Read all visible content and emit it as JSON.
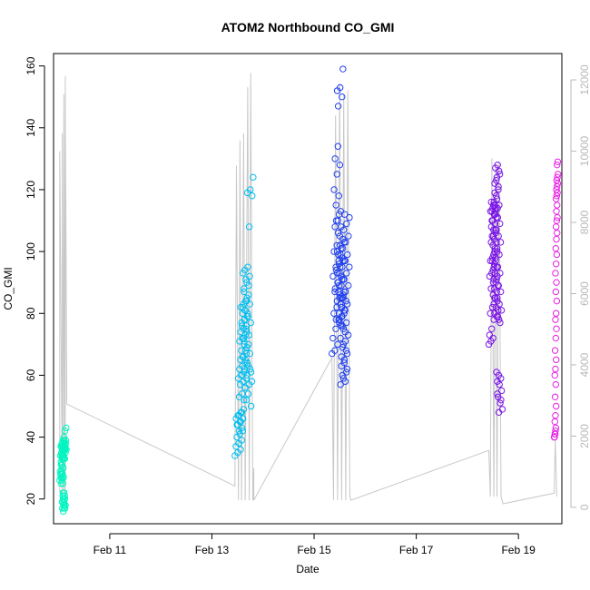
{
  "chart_data": {
    "type": "scatter",
    "title": "ATOM2 Northbound CO_GMI",
    "xlabel": "Date",
    "ylabel": "CO_GMI",
    "x_ticks": [
      "Feb 11",
      "Feb 13",
      "Feb 15",
      "Feb 17",
      "Feb 19"
    ],
    "x_tick_days": [
      11,
      13,
      15,
      17,
      19
    ],
    "xlim_days": [
      9.9,
      19.85
    ],
    "ylim": [
      12,
      164
    ],
    "y_ticks": [
      20,
      40,
      60,
      80,
      100,
      120,
      140,
      160
    ],
    "y2_ticks": [
      0,
      2000,
      4000,
      6000,
      8000,
      10000,
      12000
    ],
    "y2_lim": [
      -460,
      12740
    ],
    "grid": false,
    "legend": "none",
    "colors": {
      "altitude_line": "#c8c8c8",
      "right_axis": "#b8b8b8",
      "clusters": [
        "#00f5c0",
        "#00bef0",
        "#1f3ff0",
        "#7a14e8",
        "#e81ee6"
      ]
    },
    "series": [
      {
        "clusters": [
          {
            "x_range": [
              10.02,
              10.16
            ],
            "y": [
              26,
              27,
              28,
              29,
              25,
              27,
              28,
              29,
              30,
              31,
              33,
              34,
              35,
              36,
              37,
              38,
              39,
              37,
              36,
              35,
              34,
              33,
              32,
              31,
              30,
              29,
              28,
              27,
              26,
              25,
              38,
              37,
              36,
              35,
              34,
              33,
              19,
              20,
              18,
              17,
              19,
              21,
              22,
              18,
              17,
              19,
              20,
              21,
              18,
              17,
              16,
              17,
              18,
              19,
              20,
              21,
              22,
              36,
              37,
              38,
              39,
              40,
              42,
              43,
              36,
              35,
              34,
              33,
              38,
              39,
              37,
              36
            ]
          },
          {
            "x_range": [
              13.45,
              13.82
            ],
            "y": [
              34,
              35,
              36,
              37,
              38,
              39,
              40,
              41,
              42,
              44,
              45,
              46,
              47,
              48,
              44,
              45,
              46,
              47,
              48,
              49,
              42,
              43,
              44,
              45,
              46,
              47,
              48,
              52,
              53,
              54,
              56,
              57,
              58,
              59,
              60,
              61,
              62,
              63,
              64,
              65,
              66,
              67,
              68,
              70,
              71,
              72,
              73,
              74,
              75,
              76,
              77,
              78,
              79,
              80,
              81,
              82,
              83,
              84,
              60,
              62,
              64,
              66,
              68,
              70,
              72,
              74,
              76,
              78,
              80,
              82,
              84,
              86,
              88,
              90,
              92,
              94,
              95,
              93,
              91,
              89,
              87,
              85,
              83,
              81,
              79,
              77,
              75,
              73,
              71,
              69,
              67,
              65,
              63,
              61,
              59,
              57,
              58,
              60,
              62,
              56,
              54,
              50,
              52,
              108,
              118,
              119,
              120,
              124
            ]
          },
          {
            "x_range": [
              15.35,
              15.72
            ],
            "y": [
              67,
              68,
              70,
              72,
              75,
              78,
              80,
              82,
              85,
              87,
              90,
              92,
              95,
              97,
              100,
              102,
              105,
              108,
              110,
              113,
              115,
              118,
              120,
              125,
              128,
              130,
              134,
              76,
              78,
              80,
              82,
              84,
              86,
              88,
              90,
              92,
              94,
              96,
              98,
              100,
              102,
              104,
              106,
              108,
              110,
              112,
              150,
              152,
              153,
              159,
              147,
              85,
              87,
              89,
              91,
              93,
              95,
              97,
              99,
              101,
              103,
              77,
              79,
              81,
              83,
              85,
              87,
              89,
              91,
              93,
              95,
              97,
              99,
              86,
              84,
              82,
              80,
              78,
              76,
              74,
              72,
              70,
              68,
              66,
              64,
              62,
              60,
              58,
              57,
              59,
              61,
              63,
              65,
              67,
              69,
              71,
              73,
              75,
              77,
              79,
              81,
              83,
              85,
              87,
              89,
              91,
              93,
              95,
              97,
              99,
              101,
              103,
              105,
              107,
              109,
              111,
              112
            ]
          },
          {
            "x_range": [
              18.42,
              18.7
            ],
            "y": [
              70,
              71,
              72,
              73,
              75,
              78,
              80,
              82,
              85,
              88,
              90,
              92,
              93,
              95,
              97,
              98,
              100,
              103,
              105,
              107,
              110,
              112,
              113,
              114,
              115,
              116,
              115,
              114,
              113,
              112,
              111,
              110,
              109,
              108,
              107,
              106,
              105,
              104,
              103,
              102,
              101,
              100,
              99,
              98,
              97,
              96,
              95,
              94,
              93,
              92,
              91,
              90,
              89,
              88,
              87,
              86,
              85,
              84,
              83,
              82,
              81,
              80,
              79,
              78,
              112,
              114,
              116,
              118,
              120,
              122,
              124,
              126,
              127,
              128,
              125,
              123,
              121,
              119,
              117,
              115,
              113,
              111,
              109,
              107,
              105,
              103,
              101,
              99,
              97,
              95,
              93,
              91,
              89,
              87,
              85,
              83,
              81,
              79,
              77,
              61,
              60,
              59,
              58,
              57,
              55,
              53,
              51,
              49,
              48,
              52,
              54
            ]
          },
          {
            "x_range": [
              19.7,
              19.78
            ],
            "y": [
              40,
              41,
              42,
              40,
              41,
              43,
              45,
              47,
              50,
              53,
              57,
              60,
              62,
              65,
              68,
              72,
              75,
              78,
              80,
              84,
              87,
              90,
              93,
              96,
              99,
              101,
              104,
              106,
              108,
              110,
              111,
              113,
              115,
              117,
              118,
              119,
              120,
              121,
              122,
              123,
              124,
              125,
              128,
              129
            ]
          }
        ]
      }
    ]
  }
}
